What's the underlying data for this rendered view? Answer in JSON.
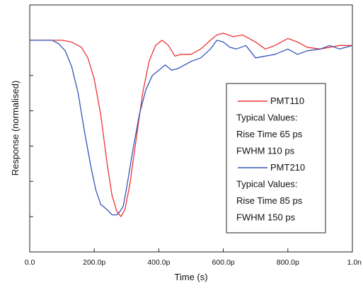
{
  "chart_data": {
    "type": "line",
    "xlabel": "Time (s)",
    "ylabel": "Response (normalised)",
    "xlim": [
      0,
      1000
    ],
    "x_ticks": [
      {
        "value": 0,
        "label": "0.0"
      },
      {
        "value": 200,
        "label": "200.0p"
      },
      {
        "value": 400,
        "label": "400.0p"
      },
      {
        "value": 600,
        "label": "600.0p"
      },
      {
        "value": 800,
        "label": "800.0p"
      },
      {
        "value": 1000,
        "label": "1.0n"
      }
    ],
    "ylim": [
      -1.2,
      0.2
    ],
    "y_ticks": [
      -1.2,
      -1.0,
      -0.8,
      -0.6,
      -0.4,
      -0.2,
      0.0,
      0.2
    ],
    "grid": false,
    "legend_placement": "right",
    "colors": {
      "PMT110": "#ee3333",
      "PMT210": "#3355bb"
    },
    "series": [
      {
        "name": "PMT110",
        "x": [
          0,
          100,
          130,
          160,
          180,
          200,
          220,
          240,
          255,
          270,
          283,
          295,
          310,
          330,
          350,
          370,
          390,
          410,
          430,
          450,
          470,
          500,
          530,
          560,
          580,
          600,
          630,
          660,
          700,
          730,
          760,
          800,
          830,
          860,
          900,
          930,
          960,
          1000
        ],
        "y": [
          0.0,
          0.0,
          -0.01,
          -0.04,
          -0.1,
          -0.22,
          -0.42,
          -0.7,
          -0.88,
          -0.97,
          -1.0,
          -0.96,
          -0.82,
          -0.56,
          -0.3,
          -0.12,
          -0.03,
          0.0,
          -0.03,
          -0.09,
          -0.08,
          -0.08,
          -0.05,
          0.0,
          0.03,
          0.04,
          0.02,
          0.03,
          -0.01,
          -0.05,
          -0.03,
          0.01,
          -0.01,
          -0.04,
          -0.05,
          -0.04,
          -0.03,
          -0.03
        ]
      },
      {
        "name": "PMT210",
        "x": [
          0,
          70,
          90,
          110,
          130,
          150,
          170,
          190,
          205,
          220,
          240,
          255,
          270,
          280,
          290,
          300,
          320,
          340,
          360,
          380,
          400,
          420,
          440,
          460,
          480,
          500,
          530,
          560,
          580,
          600,
          620,
          640,
          670,
          700,
          730,
          760,
          800,
          830,
          860,
          900,
          930,
          960,
          1000
        ],
        "y": [
          0.0,
          0.0,
          -0.02,
          -0.06,
          -0.15,
          -0.3,
          -0.52,
          -0.72,
          -0.85,
          -0.93,
          -0.96,
          -0.99,
          -0.99,
          -0.97,
          -0.94,
          -0.84,
          -0.62,
          -0.42,
          -0.28,
          -0.2,
          -0.17,
          -0.14,
          -0.17,
          -0.16,
          -0.14,
          -0.12,
          -0.1,
          -0.05,
          0.0,
          -0.01,
          -0.04,
          -0.05,
          -0.03,
          -0.1,
          -0.09,
          -0.08,
          -0.05,
          -0.08,
          -0.06,
          -0.05,
          -0.03,
          -0.05,
          -0.03
        ]
      }
    ],
    "legend_lines": [
      {
        "type": "series",
        "series": "PMT110",
        "text": "PMT110"
      },
      {
        "type": "text",
        "text": "Typical Values:"
      },
      {
        "type": "text",
        "text": "Rise Time 65 ps"
      },
      {
        "type": "text",
        "text": "FWHM 110 ps"
      },
      {
        "type": "series",
        "series": "PMT210",
        "text": "PMT210"
      },
      {
        "type": "text",
        "text": "Typical Values:"
      },
      {
        "type": "text",
        "text": "Rise Time 85 ps"
      },
      {
        "type": "text",
        "text": "FWHM 150 ps"
      }
    ]
  }
}
